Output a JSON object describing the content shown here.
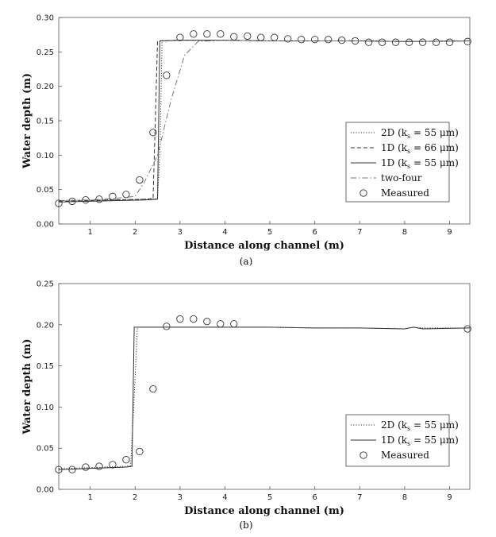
{
  "chart_data": [
    {
      "type": "line",
      "panel_label": "(a)",
      "xlabel": "Distance along channel (m)",
      "ylabel": "Water depth (m)",
      "xlim": [
        0.3,
        9.45
      ],
      "ylim": [
        0,
        0.3
      ],
      "xticks": [
        1,
        2,
        3,
        4,
        5,
        6,
        7,
        8,
        9
      ],
      "yticks": [
        0.0,
        0.05,
        0.1,
        0.15,
        0.2,
        0.25,
        0.3
      ],
      "ytick_labels": [
        "0.00",
        "0.05",
        "0.10",
        "0.15",
        "0.20",
        "0.25",
        "0.30"
      ],
      "grid": false,
      "legend_position": "right",
      "series": [
        {
          "name": "2D (k",
          "name_sub": "s",
          "name_tail": " = 55 μm)",
          "style": "dotted",
          "x": [
            0.3,
            2.2,
            2.5,
            2.55,
            2.6,
            3.0,
            4.0,
            5.0,
            6.0,
            7.0,
            8.0,
            9.45
          ],
          "y": [
            0.034,
            0.036,
            0.037,
            0.1,
            0.266,
            0.267,
            0.267,
            0.266,
            0.266,
            0.266,
            0.265,
            0.266
          ]
        },
        {
          "name": "1D (k",
          "name_sub": "s",
          "name_tail": " = 66 μm)",
          "style": "dashed",
          "x": [
            0.3,
            2.2,
            2.4,
            2.45,
            2.5,
            3.0,
            4.0,
            5.0,
            6.0,
            7.0,
            8.0,
            9.45
          ],
          "y": [
            0.033,
            0.036,
            0.037,
            0.15,
            0.266,
            0.267,
            0.267,
            0.266,
            0.266,
            0.266,
            0.265,
            0.266
          ]
        },
        {
          "name": "1D (k",
          "name_sub": "s",
          "name_tail": " = 55 μm)",
          "style": "solid",
          "x": [
            0.3,
            2.2,
            2.5,
            2.55,
            3.0,
            4.0,
            5.0,
            6.0,
            7.0,
            8.0,
            9.45
          ],
          "y": [
            0.032,
            0.035,
            0.036,
            0.266,
            0.267,
            0.267,
            0.266,
            0.266,
            0.266,
            0.265,
            0.266
          ]
        },
        {
          "name": "two-four",
          "style": "dashdot",
          "x": [
            0.3,
            1.0,
            1.5,
            2.0,
            2.2,
            2.5,
            2.8,
            3.1,
            3.4,
            4.0,
            5.0,
            6.0,
            7.0,
            8.0,
            9.45
          ],
          "y": [
            0.034,
            0.035,
            0.037,
            0.04,
            0.06,
            0.1,
            0.18,
            0.245,
            0.265,
            0.267,
            0.266,
            0.266,
            0.266,
            0.265,
            0.266
          ]
        },
        {
          "name": "Measured",
          "style": "markers",
          "x": [
            0.3,
            0.6,
            0.9,
            1.2,
            1.5,
            1.8,
            2.1,
            2.4,
            2.7,
            3.0,
            3.3,
            3.6,
            3.9,
            4.2,
            4.5,
            4.8,
            5.1,
            5.4,
            5.7,
            6.0,
            6.3,
            6.6,
            6.9,
            7.2,
            7.5,
            7.8,
            8.1,
            8.4,
            8.7,
            9.0,
            9.4
          ],
          "y": [
            0.03,
            0.033,
            0.035,
            0.036,
            0.04,
            0.043,
            0.064,
            0.133,
            0.216,
            0.271,
            0.276,
            0.276,
            0.276,
            0.272,
            0.273,
            0.271,
            0.271,
            0.269,
            0.268,
            0.268,
            0.268,
            0.267,
            0.266,
            0.264,
            0.264,
            0.264,
            0.264,
            0.264,
            0.264,
            0.264,
            0.265
          ]
        }
      ]
    },
    {
      "type": "line",
      "panel_label": "(b)",
      "xlabel": "Distance along channel (m)",
      "ylabel": "Water depth (m)",
      "xlim": [
        0.3,
        9.45
      ],
      "ylim": [
        0,
        0.25
      ],
      "xticks": [
        1,
        2,
        3,
        4,
        5,
        6,
        7,
        8,
        9
      ],
      "yticks": [
        0.0,
        0.05,
        0.1,
        0.15,
        0.2,
        0.25
      ],
      "ytick_labels": [
        "0.00",
        "0.05",
        "0.10",
        "0.15",
        "0.20",
        "0.25"
      ],
      "grid": false,
      "legend_position": "right",
      "series": [
        {
          "name": "2D (k",
          "name_sub": "s",
          "name_tail": " = 55 μm)",
          "style": "dotted",
          "x": [
            0.3,
            1.8,
            1.9,
            1.97,
            2.05,
            3.0,
            4.0,
            5.0,
            6.0,
            7.0,
            8.0,
            8.2,
            8.4,
            9.45
          ],
          "y": [
            0.025,
            0.028,
            0.029,
            0.1,
            0.197,
            0.197,
            0.197,
            0.197,
            0.196,
            0.196,
            0.195,
            0.197,
            0.196,
            0.196
          ]
        },
        {
          "name": "1D (k",
          "name_sub": "s",
          "name_tail": " = 55 μm)",
          "style": "solid",
          "x": [
            0.3,
            1.8,
            1.93,
            1.98,
            3.0,
            4.0,
            5.0,
            6.0,
            7.0,
            8.0,
            8.2,
            8.4,
            9.45
          ],
          "y": [
            0.024,
            0.027,
            0.028,
            0.197,
            0.197,
            0.197,
            0.197,
            0.196,
            0.196,
            0.195,
            0.197,
            0.195,
            0.196
          ]
        },
        {
          "name": "Measured",
          "style": "markers",
          "x": [
            0.3,
            0.6,
            0.9,
            1.2,
            1.5,
            1.8,
            2.1,
            2.4,
            2.7,
            3.0,
            3.3,
            3.6,
            3.9,
            4.2,
            9.4
          ],
          "y": [
            0.024,
            0.024,
            0.027,
            0.028,
            0.03,
            0.036,
            0.046,
            0.122,
            0.198,
            0.207,
            0.207,
            0.204,
            0.201,
            0.201,
            0.195
          ]
        }
      ]
    }
  ]
}
